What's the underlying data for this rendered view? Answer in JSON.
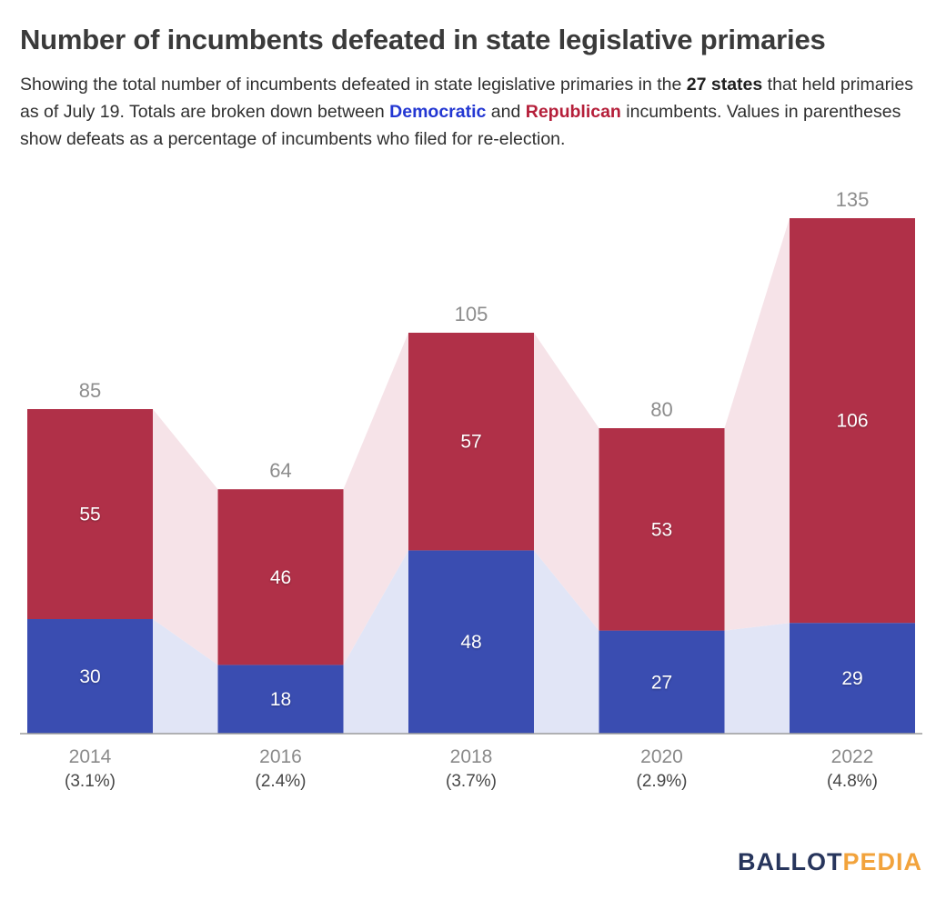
{
  "header": {
    "title": "Number of incumbents defeated in state legislative primaries",
    "subtitle": {
      "part1": "Showing the total number of incumbents defeated in state legislative primaries in the ",
      "bold_states": "27 states",
      "part2": " that held primaries as of July 19. Totals are broken down between ",
      "democratic_word": "Democratic",
      "part3": " and ",
      "republican_word": "Republican",
      "part4": " incumbents. Values in parentheses show defeats as a percentage of incumbents who filed for re-election."
    }
  },
  "chart_data": {
    "type": "bar",
    "stacked": true,
    "title": "Number of incumbents defeated in state legislative primaries",
    "categories": [
      "2014",
      "2016",
      "2018",
      "2020",
      "2022"
    ],
    "category_sublabels": [
      "(3.1%)",
      "(2.4%)",
      "(3.7%)",
      "(2.9%)",
      "(4.8%)"
    ],
    "series": [
      {
        "name": "Democratic",
        "color": "#3a4db1",
        "values": [
          30,
          18,
          48,
          27,
          29
        ]
      },
      {
        "name": "Republican",
        "color": "#b03048",
        "values": [
          55,
          46,
          57,
          53,
          106
        ]
      }
    ],
    "totals": [
      85,
      64,
      105,
      80,
      135
    ],
    "ylim": [
      0,
      135
    ],
    "grid": false,
    "legend": "none",
    "connector_colors": {
      "democratic": "#e1e5f6",
      "republican": "#f6e3e8"
    },
    "label_color_total": "#8d8d8d",
    "label_color_segment": "#ffffff",
    "axis_line_color": "#9b9b9b"
  },
  "footer": {
    "logo_ballot": "BALLOT",
    "logo_pedia": "PEDIA"
  }
}
